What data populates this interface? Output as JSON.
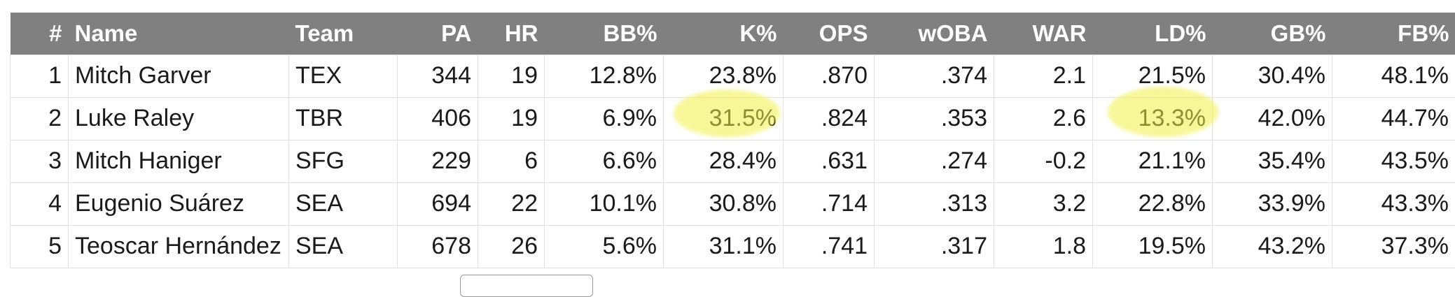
{
  "table": {
    "headers": [
      "#",
      "Name",
      "Team",
      "PA",
      "HR",
      "BB%",
      "K%",
      "OPS",
      "wOBA",
      "WAR",
      "LD%",
      "GB%",
      "FB%"
    ],
    "rows": [
      [
        "1",
        "Mitch Garver",
        "TEX",
        "344",
        "19",
        "12.8%",
        "23.8%",
        ".870",
        ".374",
        "2.1",
        "21.5%",
        "30.4%",
        "48.1%"
      ],
      [
        "2",
        "Luke Raley",
        "TBR",
        "406",
        "19",
        "6.9%",
        "31.5%",
        ".824",
        ".353",
        "2.6",
        "13.3%",
        "42.0%",
        "44.7%"
      ],
      [
        "3",
        "Mitch Haniger",
        "SFG",
        "229",
        "6",
        "6.6%",
        "28.4%",
        ".631",
        ".274",
        "-0.2",
        "21.1%",
        "35.4%",
        "43.5%"
      ],
      [
        "4",
        "Eugenio Suárez",
        "SEA",
        "694",
        "22",
        "10.1%",
        "30.8%",
        ".714",
        ".313",
        "3.2",
        "22.8%",
        "33.9%",
        "43.3%"
      ],
      [
        "5",
        "Teoscar Hernández",
        "SEA",
        "678",
        "26",
        "5.6%",
        "31.1%",
        ".741",
        ".317",
        "1.8",
        "19.5%",
        "43.2%",
        "37.3%"
      ]
    ]
  },
  "highlights": [
    {
      "row": 2,
      "column": "K%",
      "value": "31.5%",
      "color": "#f0f046"
    },
    {
      "row": 2,
      "column": "LD%",
      "value": "13.3%",
      "color": "#f0f046"
    }
  ],
  "colors": {
    "header_bg": "#808080",
    "header_text": "#ffffff",
    "cell_border": "#e0e0e0",
    "highlight": "#f0f046"
  }
}
